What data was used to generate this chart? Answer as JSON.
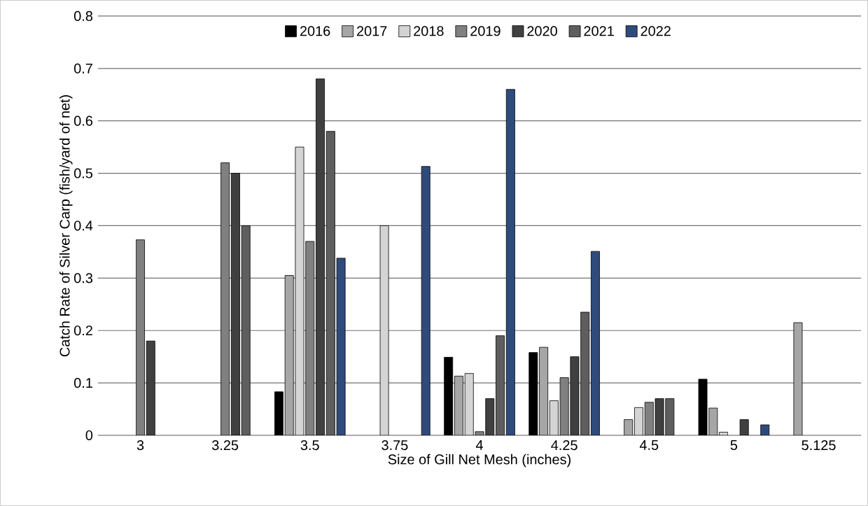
{
  "chart_data": {
    "type": "bar",
    "xlabel": "Size of Gill Net Mesh (inches)",
    "ylabel": "Catch Rate of Silver Carp (fish/yard of net)",
    "categories": [
      "3",
      "3.25",
      "3.5",
      "3.75",
      "4",
      "4.25",
      "4.5",
      "5",
      "5.125"
    ],
    "series": [
      {
        "name": "2016",
        "color": "#000000",
        "values": [
          null,
          null,
          0.083,
          null,
          0.149,
          0.158,
          null,
          0.107,
          null
        ]
      },
      {
        "name": "2017",
        "color": "#a6a6a6",
        "values": [
          null,
          null,
          0.305,
          null,
          0.113,
          0.168,
          0.03,
          0.052,
          0.215
        ]
      },
      {
        "name": "2018",
        "color": "#d4d4d4",
        "values": [
          null,
          null,
          0.55,
          0.4,
          0.118,
          0.066,
          0.053,
          0.006,
          null
        ]
      },
      {
        "name": "2019",
        "color": "#808080",
        "values": [
          0.373,
          0.52,
          0.37,
          null,
          0.007,
          0.11,
          0.063,
          null,
          null
        ]
      },
      {
        "name": "2020",
        "color": "#404040",
        "values": [
          0.18,
          0.5,
          0.68,
          null,
          0.07,
          0.15,
          0.07,
          0.03,
          null
        ]
      },
      {
        "name": "2021",
        "color": "#5e5e5e",
        "values": [
          null,
          0.4,
          0.58,
          null,
          0.19,
          0.235,
          0.07,
          null,
          null
        ]
      },
      {
        "name": "2022",
        "color": "#2f4b7c",
        "values": [
          null,
          null,
          0.338,
          0.513,
          0.66,
          0.351,
          null,
          0.02,
          null
        ]
      }
    ],
    "ylim": [
      0,
      0.8
    ],
    "yticks": [
      0,
      0.1,
      0.2,
      0.3,
      0.4,
      0.5,
      0.6,
      0.7,
      0.8
    ],
    "grid": "y",
    "legend": "top"
  }
}
